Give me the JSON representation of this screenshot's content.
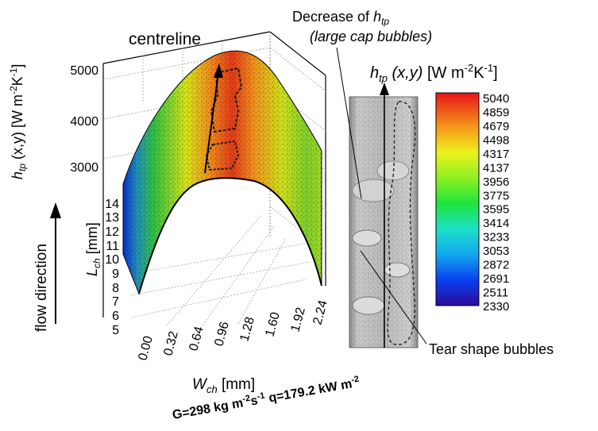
{
  "annotations": {
    "centreline": "centreline",
    "flow_direction": "flow direction",
    "decrease_htp": "Decrease of htp",
    "large_cap": "(large cap bubbles)",
    "tear_shape": "Tear shape bubbles",
    "colorbar_title": "htp (x,y) [W m-2K-1]",
    "conditions": "G=298 kg m-2s-1 q=179.2 kW m-2"
  },
  "chart_data": {
    "type": "heatmap",
    "title": "",
    "surface": {
      "xlabel": "Wch [mm]",
      "ylabel": "Lch [mm]",
      "zlabel": "htp (x,y) [W m-2K-1]",
      "x_ticks": [
        "0.00",
        "0.32",
        "0.64",
        "0.96",
        "1.28",
        "1.60",
        "1.92",
        "2.24"
      ],
      "y_ticks": [
        "5",
        "6",
        "7",
        "8",
        "9",
        "10",
        "11",
        "12",
        "13",
        "14"
      ],
      "z_ticks": [
        "5000",
        "4000",
        "3000"
      ],
      "xlim": [
        0.0,
        2.24
      ],
      "ylim": [
        5,
        14
      ],
      "zlim": [
        2330,
        5040
      ]
    },
    "colorbar": {
      "title": "htp (x,y) [W m-2K-1]",
      "ticks": [
        "5040",
        "4859",
        "4679",
        "4498",
        "4317",
        "4137",
        "3956",
        "3775",
        "3595",
        "3414",
        "3233",
        "3053",
        "2872",
        "2691",
        "2511",
        "2330"
      ],
      "min": 2330,
      "max": 5040
    },
    "colors": {
      "low": "#2c0c9c",
      "mid": "#1ee43c",
      "high": "#e8151a"
    }
  }
}
